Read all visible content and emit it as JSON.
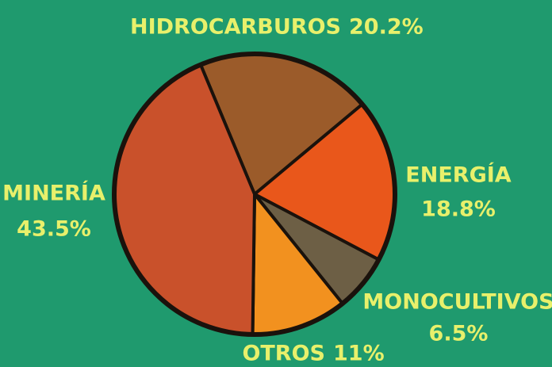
{
  "chart_data": {
    "type": "pie",
    "categories": [
      "HIDROCARBUROS",
      "ENERGÍA",
      "MONOCULTIVOS",
      "OTROS",
      "MINERÍA"
    ],
    "values": [
      20.2,
      18.8,
      6.5,
      11,
      43.5
    ],
    "value_labels": [
      "20.2%",
      "18.8%",
      "6.5%",
      "11%",
      "43.5%"
    ],
    "colors": [
      "#9b5b2a",
      "#e9571b",
      "#6d5f45",
      "#f2911f",
      "#c9512b"
    ]
  }
}
